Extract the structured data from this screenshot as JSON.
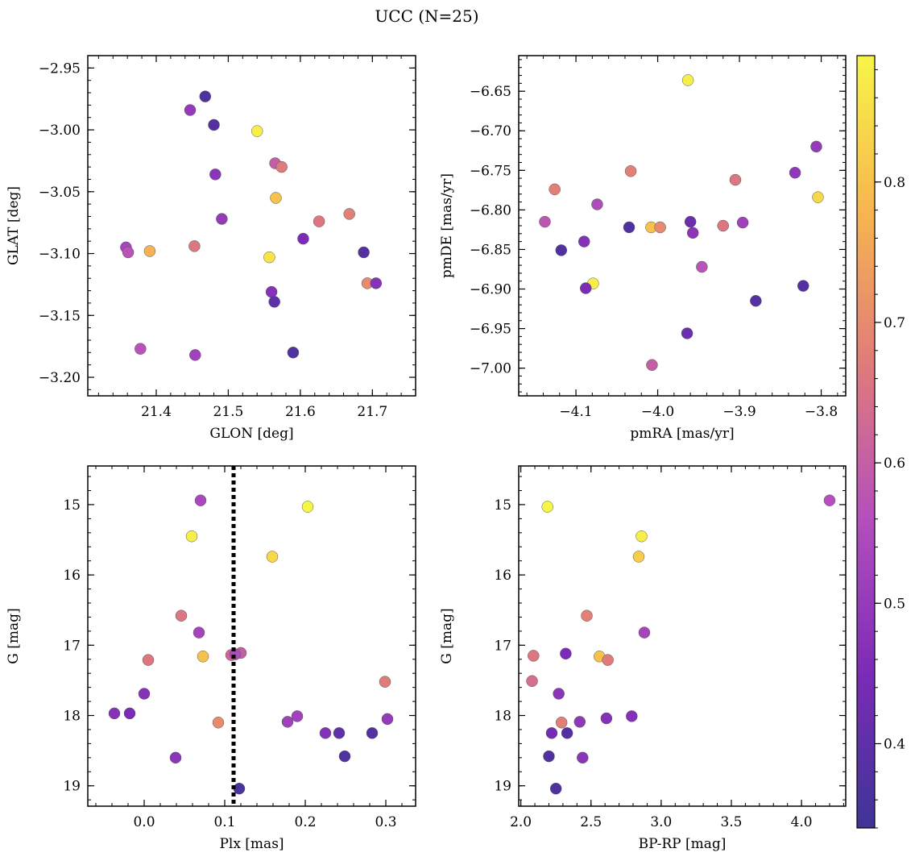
{
  "title": "UCC (N=25)",
  "colormap": {
    "name": "plasma",
    "stops": [
      "#3e3596",
      "#7b2bb7",
      "#b44fbd",
      "#e07b7b",
      "#f7b64f",
      "#f7f548"
    ],
    "range": [
      0.34,
      0.89
    ],
    "ticks": [
      "0.4",
      "0.5",
      "0.6",
      "0.7",
      "0.8"
    ]
  },
  "chart_data": [
    {
      "type": "scatter",
      "xlabel": "GLON [deg]",
      "ylabel": "GLAT [deg]",
      "xlim": [
        21.305,
        21.76
      ],
      "ylim": [
        -3.215,
        -2.94
      ],
      "xticks": [
        "21.4",
        "21.5",
        "21.6",
        "21.7"
      ],
      "yticks": [
        "−2.95",
        "−3.00",
        "−3.05",
        "−3.10",
        "−3.15",
        "−3.20"
      ],
      "x": [
        21.468,
        21.447,
        21.48,
        21.54,
        21.565,
        21.574,
        21.482,
        21.566,
        21.668,
        21.491,
        21.626,
        21.604,
        21.358,
        21.453,
        21.361,
        21.391,
        21.557,
        21.688,
        21.693,
        21.705,
        21.56,
        21.564,
        21.378,
        21.454,
        21.59
      ],
      "y": [
        -2.973,
        -2.984,
        -2.996,
        -3.001,
        -3.027,
        -3.03,
        -3.036,
        -3.055,
        -3.068,
        -3.072,
        -3.074,
        -3.088,
        -3.095,
        -3.094,
        -3.099,
        -3.098,
        -3.103,
        -3.099,
        -3.124,
        -3.124,
        -3.131,
        -3.139,
        -3.177,
        -3.182,
        -3.18
      ],
      "color": [
        0.37,
        0.5,
        0.38,
        0.88,
        0.6,
        0.67,
        0.48,
        0.8,
        0.68,
        0.5,
        0.66,
        0.45,
        0.53,
        0.66,
        0.57,
        0.77,
        0.86,
        0.38,
        0.7,
        0.47,
        0.47,
        0.4,
        0.57,
        0.52,
        0.37
      ]
    },
    {
      "type": "scatter",
      "xlabel": "pmRA [mas/yr]",
      "ylabel": "pmDE [mas/yr]",
      "xlim": [
        -4.17,
        -3.77
      ],
      "ylim": [
        -7.035,
        -6.605
      ],
      "xticks": [
        "−4.1",
        "−4.0",
        "−3.9",
        "−3.8"
      ],
      "yticks": [
        "−6.65",
        "−6.70",
        "−6.75",
        "−6.80",
        "−6.85",
        "−6.90",
        "−6.95",
        "−7.00"
      ],
      "x": [
        -3.963,
        -3.806,
        -4.033,
        -3.832,
        -3.905,
        -4.126,
        -3.804,
        -4.074,
        -4.138,
        -3.96,
        -3.896,
        -3.92,
        -4.035,
        -4.008,
        -3.997,
        -3.957,
        -4.09,
        -4.118,
        -3.946,
        -4.079,
        -4.088,
        -3.822,
        -3.88,
        -3.964,
        -4.007
      ],
      "y": [
        -6.636,
        -6.72,
        -6.751,
        -6.753,
        -6.762,
        -6.774,
        -6.784,
        -6.793,
        -6.815,
        -6.815,
        -6.816,
        -6.82,
        -6.822,
        -6.822,
        -6.822,
        -6.829,
        -6.84,
        -6.851,
        -6.872,
        -6.893,
        -6.899,
        -6.896,
        -6.915,
        -6.956,
        -6.996
      ],
      "color": [
        0.88,
        0.5,
        0.68,
        0.49,
        0.66,
        0.68,
        0.84,
        0.55,
        0.58,
        0.42,
        0.52,
        0.66,
        0.37,
        0.8,
        0.7,
        0.48,
        0.47,
        0.37,
        0.57,
        0.88,
        0.45,
        0.38,
        0.38,
        0.42,
        0.6
      ]
    },
    {
      "type": "scatter",
      "xlabel": "Plx [mas]",
      "ylabel": "G [mag]",
      "xlim": [
        -0.07,
        0.337
      ],
      "ylim": [
        19.29,
        14.45
      ],
      "xticks": [
        "0.0",
        "0.1",
        "0.2",
        "0.3"
      ],
      "yticks": [
        "15",
        "16",
        "17",
        "18",
        "19"
      ],
      "vline": 0.111,
      "x": [
        0.07,
        0.203,
        0.059,
        0.159,
        0.046,
        0.068,
        0.073,
        0.005,
        0.108,
        0.12,
        0.0,
        0.299,
        -0.037,
        -0.018,
        0.092,
        0.178,
        0.19,
        0.302,
        0.225,
        0.242,
        0.283,
        0.039,
        0.249,
        0.118,
        0.113
      ],
      "y": [
        14.94,
        15.03,
        15.45,
        15.74,
        16.58,
        16.82,
        17.16,
        17.21,
        17.14,
        17.11,
        17.69,
        17.52,
        17.97,
        17.97,
        18.1,
        18.09,
        18.01,
        18.05,
        18.25,
        18.25,
        18.25,
        18.6,
        18.58,
        19.04,
        17.13
      ],
      "color": [
        0.54,
        0.89,
        0.88,
        0.84,
        0.66,
        0.53,
        0.8,
        0.66,
        0.62,
        0.6,
        0.47,
        0.67,
        0.47,
        0.45,
        0.7,
        0.52,
        0.52,
        0.5,
        0.47,
        0.4,
        0.38,
        0.48,
        0.37,
        0.36,
        0.55
      ]
    },
    {
      "type": "scatter",
      "xlabel": "BP-RP [mag]",
      "ylabel": "G [mag]",
      "xlim": [
        1.985,
        4.315
      ],
      "ylim": [
        19.29,
        14.45
      ],
      "xticks": [
        "2.0",
        "2.5",
        "3.0",
        "3.5",
        "4.0"
      ],
      "yticks": [
        "15",
        "16",
        "17",
        "18",
        "19"
      ],
      "x": [
        4.2,
        2.19,
        2.86,
        2.84,
        2.47,
        2.88,
        2.09,
        2.32,
        2.56,
        2.62,
        2.27,
        2.08,
        2.29,
        2.61,
        2.42,
        2.79,
        2.22,
        2.33,
        2.2,
        2.44,
        2.25
      ],
      "y": [
        14.94,
        15.03,
        15.45,
        15.74,
        16.58,
        16.82,
        17.15,
        17.12,
        17.16,
        17.21,
        17.69,
        17.51,
        18.1,
        18.04,
        18.09,
        18.01,
        18.25,
        18.25,
        18.58,
        18.6,
        19.04
      ],
      "color": [
        0.56,
        0.89,
        0.88,
        0.82,
        0.68,
        0.53,
        0.66,
        0.45,
        0.8,
        0.67,
        0.48,
        0.64,
        0.68,
        0.47,
        0.49,
        0.47,
        0.44,
        0.38,
        0.37,
        0.48,
        0.37
      ]
    }
  ]
}
